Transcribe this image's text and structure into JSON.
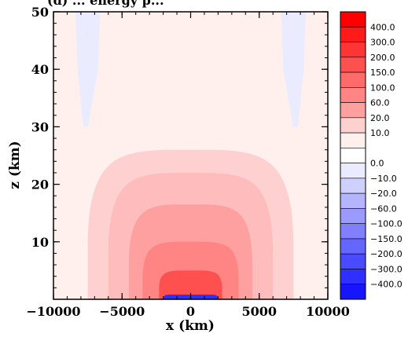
{
  "chart_data": {
    "type": "heatmap",
    "title": "(d) ... energy p...",
    "xlabel": "x (km)",
    "ylabel": "z (km)",
    "xlim": [
      -10000,
      10000
    ],
    "ylim": [
      0,
      50
    ],
    "x_ticks": [
      -10000,
      -5000,
      0,
      5000,
      10000
    ],
    "x_tick_labels": [
      "−10000",
      "−5000",
      "0",
      "5000",
      "10000"
    ],
    "y_ticks": [
      10,
      20,
      30,
      40,
      50
    ],
    "y_tick_labels": [
      "10",
      "20",
      "30",
      "40",
      "50"
    ],
    "colorbar": {
      "levels": [
        {
          "label": "400.0",
          "color": "#ff0000"
        },
        {
          "label": "300.0",
          "color": "#ff1a1a"
        },
        {
          "label": "200.0",
          "color": "#ff3535"
        },
        {
          "label": "150.0",
          "color": "#ff5050"
        },
        {
          "label": "100.0",
          "color": "#ff6a6a"
        },
        {
          "label": "60.0",
          "color": "#ff8585"
        },
        {
          "label": "20.0",
          "color": "#ffa0a0"
        },
        {
          "label": "10.0",
          "color": "#ffd0d0"
        },
        {
          "label": "",
          "color": "#fff0ee"
        },
        {
          "label": "0.0",
          "color": "#ffffff"
        },
        {
          "label": "−10.0",
          "color": "#ebebff"
        },
        {
          "label": "−20.0",
          "color": "#d0d0ff"
        },
        {
          "label": "−60.0",
          "color": "#b5b5ff"
        },
        {
          "label": "−100.0",
          "color": "#9a9aff"
        },
        {
          "label": "−150.0",
          "color": "#8080ff"
        },
        {
          "label": "−200.0",
          "color": "#6565ff"
        },
        {
          "label": "−300.0",
          "color": "#4a4aff"
        },
        {
          "label": "−400.0",
          "color": "#2f2fff"
        },
        {
          "label": "",
          "color": "#1515ff"
        }
      ]
    },
    "background_color": "#fff0ee",
    "regions": [
      {
        "name": "background",
        "color": "#fff0ee"
      },
      {
        "name": "upper-negative-left",
        "color": "#ebebff",
        "x": [
          -9000,
          -6000
        ],
        "z": [
          30,
          50
        ]
      },
      {
        "name": "upper-negative-right",
        "color": "#ebebff",
        "x": [
          6000,
          9000
        ],
        "z": [
          30,
          50
        ]
      },
      {
        "name": "contour-10",
        "color": "#ffd0d0",
        "x": [
          -7500,
          7500
        ],
        "z": [
          0,
          26
        ]
      },
      {
        "name": "contour-20",
        "color": "#ffbcbc",
        "x": [
          -6000,
          6000
        ],
        "z": [
          0,
          22
        ]
      },
      {
        "name": "contour-60",
        "color": "#ffa0a0",
        "x": [
          -4500,
          4500
        ],
        "z": [
          0,
          16.5
        ]
      },
      {
        "name": "contour-100",
        "color": "#ff8585",
        "x": [
          -3500,
          3500
        ],
        "z": [
          0,
          10
        ]
      },
      {
        "name": "contour-150",
        "color": "#ff5050",
        "x": [
          -2300,
          2300
        ],
        "z": [
          0,
          5
        ]
      },
      {
        "name": "surface-negative",
        "color": "#2f2fff",
        "x": [
          -2000,
          2000
        ],
        "z": [
          0,
          0.8
        ]
      }
    ]
  }
}
